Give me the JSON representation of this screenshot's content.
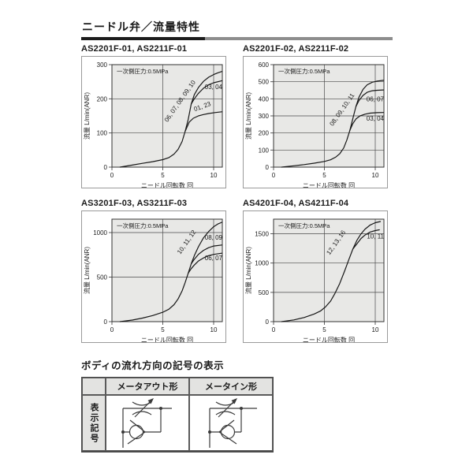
{
  "page": {
    "title": "ニードル弁／流量特性"
  },
  "chart_data": [
    {
      "type": "line",
      "title": "AS2201F-01, AS2211F-01",
      "annotation": "一次側圧力:0.5MPa",
      "xlabel": "ニードル回転数 回",
      "ylabel": "流量 L/min(ANR)",
      "xlim": [
        0,
        10.85
      ],
      "ylim": [
        0,
        300
      ],
      "xticks": [
        0,
        5,
        10
      ],
      "yticks": [
        0,
        100,
        200,
        300
      ],
      "grid": true,
      "legend": "curve-labels",
      "series": [
        {
          "name": "06, 07, 08, 09, 10",
          "label_pos": [
            6.85,
            190
          ],
          "label_rot": -55,
          "label_anchor": "middle",
          "points": [
            [
              0.8,
              0
            ],
            [
              2,
              6
            ],
            [
              3,
              11
            ],
            [
              4,
              16
            ],
            [
              5,
              22
            ],
            [
              5.6,
              28
            ],
            [
              6.1,
              38
            ],
            [
              6.5,
              52
            ],
            [
              6.9,
              75
            ],
            [
              7.2,
              105
            ],
            [
              7.5,
              140
            ],
            [
              7.8,
              185
            ],
            [
              8.1,
              212
            ],
            [
              8.5,
              233
            ],
            [
              9,
              251
            ],
            [
              9.5,
              263
            ],
            [
              10,
              271
            ],
            [
              10.4,
              276
            ],
            [
              10.8,
              280
            ]
          ]
        },
        {
          "name": "03, 04",
          "label_pos": [
            10.85,
            228
          ],
          "label_rot": 0,
          "label_anchor": "end",
          "points": [
            [
              7.8,
              185
            ],
            [
              8.1,
              200
            ],
            [
              8.5,
              216
            ],
            [
              9,
              231
            ],
            [
              9.5,
              241
            ],
            [
              10,
              247
            ],
            [
              10.8,
              253
            ]
          ]
        },
        {
          "name": "01, 23",
          "label_pos": [
            8.95,
            172
          ],
          "label_rot": -20,
          "label_anchor": "middle",
          "points": [
            [
              7.2,
              105
            ],
            [
              7.6,
              132
            ],
            [
              8,
              143
            ],
            [
              8.5,
              150
            ],
            [
              9,
              154
            ],
            [
              9.5,
              157
            ],
            [
              10.2,
              160
            ],
            [
              10.8,
              162
            ]
          ]
        }
      ]
    },
    {
      "type": "line",
      "title": "AS2201F-02, AS2211F-02",
      "annotation": "一次側圧力:0.5MPa",
      "xlabel": "ニードル回転数 回",
      "ylabel": "流量 L/min(ANR)",
      "xlim": [
        0,
        10.85
      ],
      "ylim": [
        0,
        600
      ],
      "xticks": [
        0,
        5,
        10
      ],
      "yticks": [
        0,
        100,
        200,
        300,
        400,
        500,
        600
      ],
      "grid": true,
      "legend": "curve-labels",
      "series": [
        {
          "name": "08, 09, 10, 11",
          "label_pos": [
            6.9,
            330
          ],
          "label_rot": -55,
          "label_anchor": "middle",
          "points": [
            [
              0.8,
              0
            ],
            [
              2,
              8
            ],
            [
              3,
              15
            ],
            [
              4,
              23
            ],
            [
              5,
              33
            ],
            [
              5.6,
              43
            ],
            [
              6.1,
              58
            ],
            [
              6.5,
              78
            ],
            [
              6.9,
              112
            ],
            [
              7.2,
              158
            ],
            [
              7.5,
              215
            ],
            [
              7.8,
              285
            ],
            [
              8.1,
              355
            ],
            [
              8.4,
              410
            ],
            [
              8.8,
              455
            ],
            [
              9.2,
              482
            ],
            [
              9.7,
              497
            ],
            [
              10.2,
              504
            ],
            [
              10.8,
              508
            ]
          ]
        },
        {
          "name": "06, 07",
          "label_pos": [
            10.85,
            385
          ],
          "label_rot": 0,
          "label_anchor": "end",
          "points": [
            [
              8.1,
              355
            ],
            [
              8.4,
              390
            ],
            [
              8.8,
              420
            ],
            [
              9.2,
              438
            ],
            [
              9.7,
              447
            ],
            [
              10.2,
              450
            ],
            [
              10.8,
              452
            ]
          ]
        },
        {
          "name": "03, 04",
          "label_pos": [
            10.85,
            272
          ],
          "label_rot": 0,
          "label_anchor": "end",
          "points": [
            [
              7.5,
              215
            ],
            [
              7.8,
              255
            ],
            [
              8.1,
              282
            ],
            [
              8.5,
              300
            ],
            [
              9,
              310
            ],
            [
              9.5,
              316
            ],
            [
              10.2,
              319
            ],
            [
              10.8,
              320
            ]
          ]
        }
      ]
    },
    {
      "type": "line",
      "title": "AS3201F-03, AS3211F-03",
      "annotation": "一次側圧力:0.5MPa",
      "xlabel": "ニードル回転数 回",
      "ylabel": "流量 L/min(ANR)",
      "xlim": [
        0,
        10.85
      ],
      "ylim": [
        0,
        1150
      ],
      "xticks": [
        0,
        5,
        10
      ],
      "yticks": [
        0,
        500,
        1000
      ],
      "grid": true,
      "legend": "curve-labels",
      "series": [
        {
          "name": "10, 11, 12",
          "label_pos": [
            7.5,
            880
          ],
          "label_rot": -55,
          "label_anchor": "middle",
          "points": [
            [
              0.8,
              0
            ],
            [
              2,
              18
            ],
            [
              3,
              40
            ],
            [
              4,
              68
            ],
            [
              5,
              105
            ],
            [
              5.6,
              140
            ],
            [
              6.1,
              190
            ],
            [
              6.5,
              255
            ],
            [
              6.9,
              345
            ],
            [
              7.2,
              440
            ],
            [
              7.5,
              545
            ],
            [
              7.8,
              650
            ],
            [
              8.1,
              740
            ],
            [
              8.5,
              840
            ],
            [
              9,
              940
            ],
            [
              9.5,
              1010
            ],
            [
              10,
              1065
            ],
            [
              10.4,
              1095
            ],
            [
              10.8,
              1115
            ]
          ]
        },
        {
          "name": "08, 09",
          "label_pos": [
            10.85,
            920
          ],
          "label_rot": 0,
          "label_anchor": "end",
          "points": [
            [
              7.8,
              650
            ],
            [
              8.1,
              700
            ],
            [
              8.5,
              755
            ],
            [
              9,
              800
            ],
            [
              9.5,
              830
            ],
            [
              10,
              848
            ],
            [
              10.8,
              860
            ]
          ]
        },
        {
          "name": "06, 07",
          "label_pos": [
            10.85,
            690
          ],
          "label_rot": 0,
          "label_anchor": "end",
          "points": [
            [
              7.5,
              545
            ],
            [
              7.8,
              595
            ],
            [
              8.1,
              635
            ],
            [
              8.5,
              680
            ],
            [
              9,
              715
            ],
            [
              9.5,
              740
            ],
            [
              10,
              755
            ],
            [
              10.8,
              768
            ]
          ]
        }
      ]
    },
    {
      "type": "line",
      "title": "AS4201F-04, AS4211F-04",
      "annotation": "一次側圧力:0.5MPa",
      "xlabel": "ニードル回転数 回",
      "ylabel": "流量 L/min(ANR)",
      "xlim": [
        0,
        10.85
      ],
      "ylim": [
        0,
        1750
      ],
      "xticks": [
        0,
        5,
        10
      ],
      "yticks": [
        0,
        500,
        1000,
        1500
      ],
      "grid": true,
      "legend": "curve-labels",
      "series": [
        {
          "name": "12, 13, 16",
          "label_pos": [
            6.3,
            1330
          ],
          "label_rot": -55,
          "label_anchor": "middle",
          "points": [
            [
              0.8,
              0
            ],
            [
              2,
              30
            ],
            [
              3,
              70
            ],
            [
              4,
              130
            ],
            [
              4.6,
              180
            ],
            [
              5.1,
              250
            ],
            [
              5.6,
              350
            ],
            [
              6,
              470
            ],
            [
              6.5,
              650
            ],
            [
              7,
              870
            ],
            [
              7.4,
              1060
            ],
            [
              7.8,
              1240
            ],
            [
              8.2,
              1390
            ],
            [
              8.6,
              1500
            ],
            [
              9,
              1580
            ],
            [
              9.5,
              1650
            ],
            [
              10,
              1690
            ],
            [
              10.5,
              1710
            ]
          ]
        },
        {
          "name": "10, 11",
          "label_pos": [
            10.85,
            1420
          ],
          "label_rot": 0,
          "label_anchor": "end",
          "points": [
            [
              7.8,
              1240
            ],
            [
              8.2,
              1330
            ],
            [
              8.6,
              1420
            ],
            [
              9,
              1480
            ],
            [
              9.5,
              1530
            ],
            [
              10,
              1555
            ],
            [
              10.4,
              1568
            ]
          ]
        }
      ]
    }
  ],
  "symbol_section": {
    "title": "ボディの流れ方向の記号の表示",
    "row_header": "表示記号",
    "columns": [
      "メータアウト形",
      "メータイン形"
    ]
  },
  "colors": {
    "plot_bg": "#e8e8e6",
    "grid_line": "#4a4a4a",
    "curve": "#161616",
    "rule_black": "#1c1c1c",
    "rule_gray": "#8d8d8d",
    "table_header_bg": "#e3e3e1"
  }
}
